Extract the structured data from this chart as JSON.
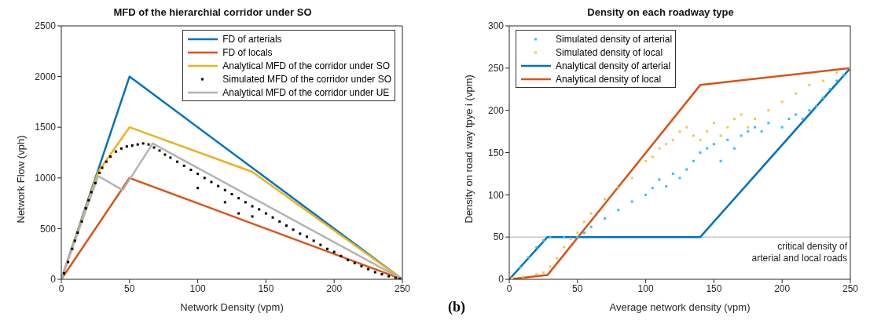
{
  "chart_data": [
    {
      "type": "line",
      "title": "MFD of the hierarchial corridor under SO",
      "xlabel": "Network Density (vpm)",
      "ylabel": "Network Flow (vph)",
      "xlim": [
        0,
        250
      ],
      "xticks": [
        0,
        50,
        100,
        150,
        200,
        250
      ],
      "ylim": [
        0,
        2500
      ],
      "yticks": [
        0,
        500,
        1000,
        1500,
        2000,
        2500
      ],
      "grid": false,
      "legend": "top right",
      "series": [
        {
          "name": "FD of arterials",
          "type": "line",
          "color": "#0072bd",
          "marker": "none",
          "x": [
            0,
            50,
            250
          ],
          "values": [
            0,
            2000,
            0
          ]
        },
        {
          "name": "FD of locals",
          "type": "line",
          "color": "#d95319",
          "marker": "none",
          "x": [
            0,
            50,
            250
          ],
          "values": [
            0,
            1000,
            0
          ]
        },
        {
          "name": "Analytical MFD of the corridor under SO",
          "type": "line",
          "color": "#edb120",
          "marker": "none",
          "x": [
            0,
            27,
            50,
            140,
            250
          ],
          "values": [
            0,
            1060,
            1500,
            1060,
            0
          ]
        },
        {
          "name": "Simulated MFD of the corridor under SO",
          "type": "scatter",
          "color": "#000000",
          "marker": "square",
          "x": [
            2,
            5,
            8,
            10,
            12,
            15,
            18,
            20,
            22,
            25,
            28,
            30,
            33,
            36,
            40,
            44,
            48,
            52,
            56,
            60,
            64,
            68,
            72,
            76,
            80,
            85,
            90,
            95,
            100,
            100,
            105,
            110,
            115,
            120,
            120,
            125,
            130,
            130,
            135,
            140,
            140,
            145,
            150,
            155,
            160,
            165,
            170,
            175,
            180,
            185,
            190,
            195,
            200,
            205,
            210,
            215,
            220,
            225,
            230,
            235,
            240,
            245,
            248
          ],
          "values": [
            60,
            170,
            300,
            380,
            460,
            570,
            700,
            780,
            860,
            950,
            1050,
            1100,
            1160,
            1210,
            1260,
            1290,
            1310,
            1320,
            1330,
            1340,
            1330,
            1300,
            1270,
            1230,
            1200,
            1160,
            1120,
            1080,
            1040,
            900,
            1000,
            960,
            920,
            880,
            760,
            840,
            800,
            650,
            760,
            720,
            620,
            690,
            650,
            610,
            570,
            530,
            490,
            450,
            420,
            380,
            340,
            300,
            270,
            230,
            190,
            160,
            130,
            100,
            70,
            50,
            30,
            15,
            5
          ]
        },
        {
          "name": "Analytical MFD of the corridor under UE",
          "type": "line",
          "color": "#b3b3b3",
          "marker": "none",
          "x": [
            0,
            27,
            45,
            67,
            250
          ],
          "values": [
            0,
            1020,
            880,
            1340,
            0
          ]
        }
      ]
    },
    {
      "type": "line",
      "title": "Density on each roadway type",
      "xlabel": "Average network density (vpm)",
      "ylabel": "Density on road way tpye i (vpm)",
      "xlim": [
        0,
        250
      ],
      "xticks": [
        0,
        50,
        100,
        150,
        200,
        250
      ],
      "ylim": [
        0,
        300
      ],
      "yticks": [
        0,
        50,
        100,
        150,
        200,
        250,
        300
      ],
      "grid": false,
      "legend": "top left",
      "annotations": [
        "(b)"
      ],
      "ref_lines": [
        {
          "axis": "y",
          "value": 50,
          "label": "critical density of\narterial and local roads",
          "color": "#c8c8c8"
        }
      ],
      "series": [
        {
          "name": "Simulated density of arterial",
          "type": "scatter",
          "color": "#2ec4f5",
          "marker": "square",
          "x": [
            8,
            14,
            20,
            25,
            30,
            40,
            50,
            55,
            60,
            70,
            80,
            90,
            100,
            105,
            110,
            115,
            120,
            125,
            130,
            135,
            140,
            145,
            150,
            155,
            160,
            165,
            170,
            175,
            180,
            185,
            190,
            200,
            205,
            210,
            215,
            220,
            225,
            230,
            235,
            240,
            245
          ],
          "values": [
            14,
            26,
            38,
            46,
            50,
            50,
            50,
            55,
            62,
            72,
            82,
            92,
            100,
            108,
            118,
            110,
            125,
            120,
            130,
            140,
            150,
            155,
            160,
            140,
            165,
            155,
            170,
            175,
            180,
            175,
            185,
            180,
            190,
            195,
            190,
            200,
            205,
            215,
            225,
            235,
            242
          ]
        },
        {
          "name": "Simulated density of local",
          "type": "scatter",
          "color": "#f0c94a",
          "marker": "square",
          "x": [
            2,
            10,
            20,
            25,
            30,
            35,
            40,
            45,
            50,
            55,
            60,
            70,
            80,
            90,
            100,
            105,
            110,
            115,
            120,
            125,
            130,
            135,
            140,
            145,
            150,
            155,
            160,
            165,
            170,
            175,
            180,
            190,
            200,
            210,
            220,
            230,
            240,
            250
          ],
          "values": [
            1,
            3,
            6,
            8,
            15,
            25,
            38,
            48,
            55,
            68,
            78,
            95,
            108,
            120,
            140,
            145,
            155,
            160,
            165,
            175,
            180,
            170,
            165,
            175,
            185,
            170,
            180,
            190,
            195,
            180,
            190,
            200,
            210,
            220,
            230,
            235,
            245,
            250
          ]
        },
        {
          "name": "Analytical density of arterial",
          "type": "line",
          "color": "#0072bd",
          "marker": "none",
          "x": [
            0,
            28,
            140,
            250
          ],
          "values": [
            0,
            50,
            50,
            250
          ]
        },
        {
          "name": "Analytical density of local",
          "type": "line",
          "color": "#d95319",
          "marker": "none",
          "x": [
            0,
            28,
            140,
            250
          ],
          "values": [
            0,
            5,
            230,
            250
          ]
        }
      ]
    }
  ]
}
